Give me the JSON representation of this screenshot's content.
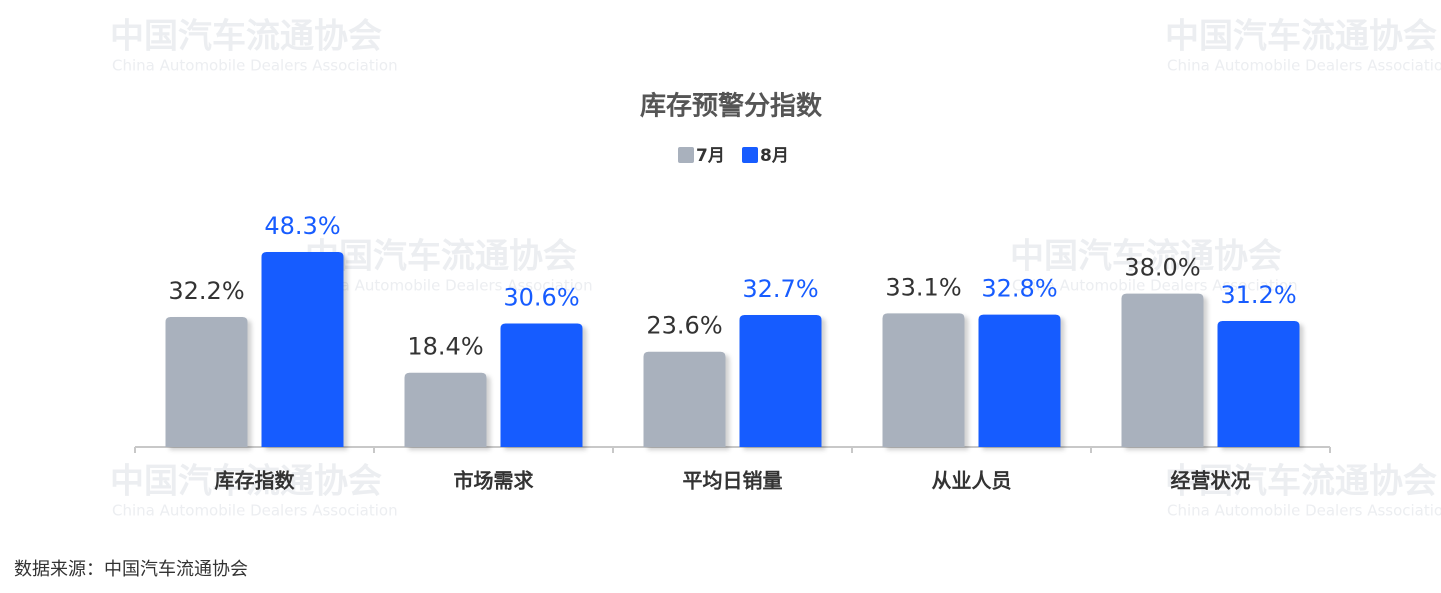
{
  "chart_data": {
    "type": "bar",
    "title": "库存预警分指数",
    "categories": [
      "库存指数",
      "市场需求",
      "平均日销量",
      "从业人员",
      "经营状况"
    ],
    "series": [
      {
        "name": "7月",
        "color": "#a9b1bd",
        "values": [
          32.2,
          18.4,
          23.6,
          33.1,
          38.0
        ],
        "value_labels": [
          "32.2%",
          "18.4%",
          "23.6%",
          "33.1%",
          "38.0%"
        ]
      },
      {
        "name": "8月",
        "color": "#175cff",
        "values": [
          48.3,
          30.6,
          32.7,
          32.8,
          31.2
        ],
        "value_labels": [
          "48.3%",
          "30.6%",
          "32.7%",
          "32.8%",
          "31.2%"
        ]
      }
    ],
    "legend": "top"
  },
  "watermark": {
    "name": "中国汽车流通协会",
    "english": "China Automobile Dealers Association"
  },
  "source": "数据来源：中国汽车流通协会"
}
